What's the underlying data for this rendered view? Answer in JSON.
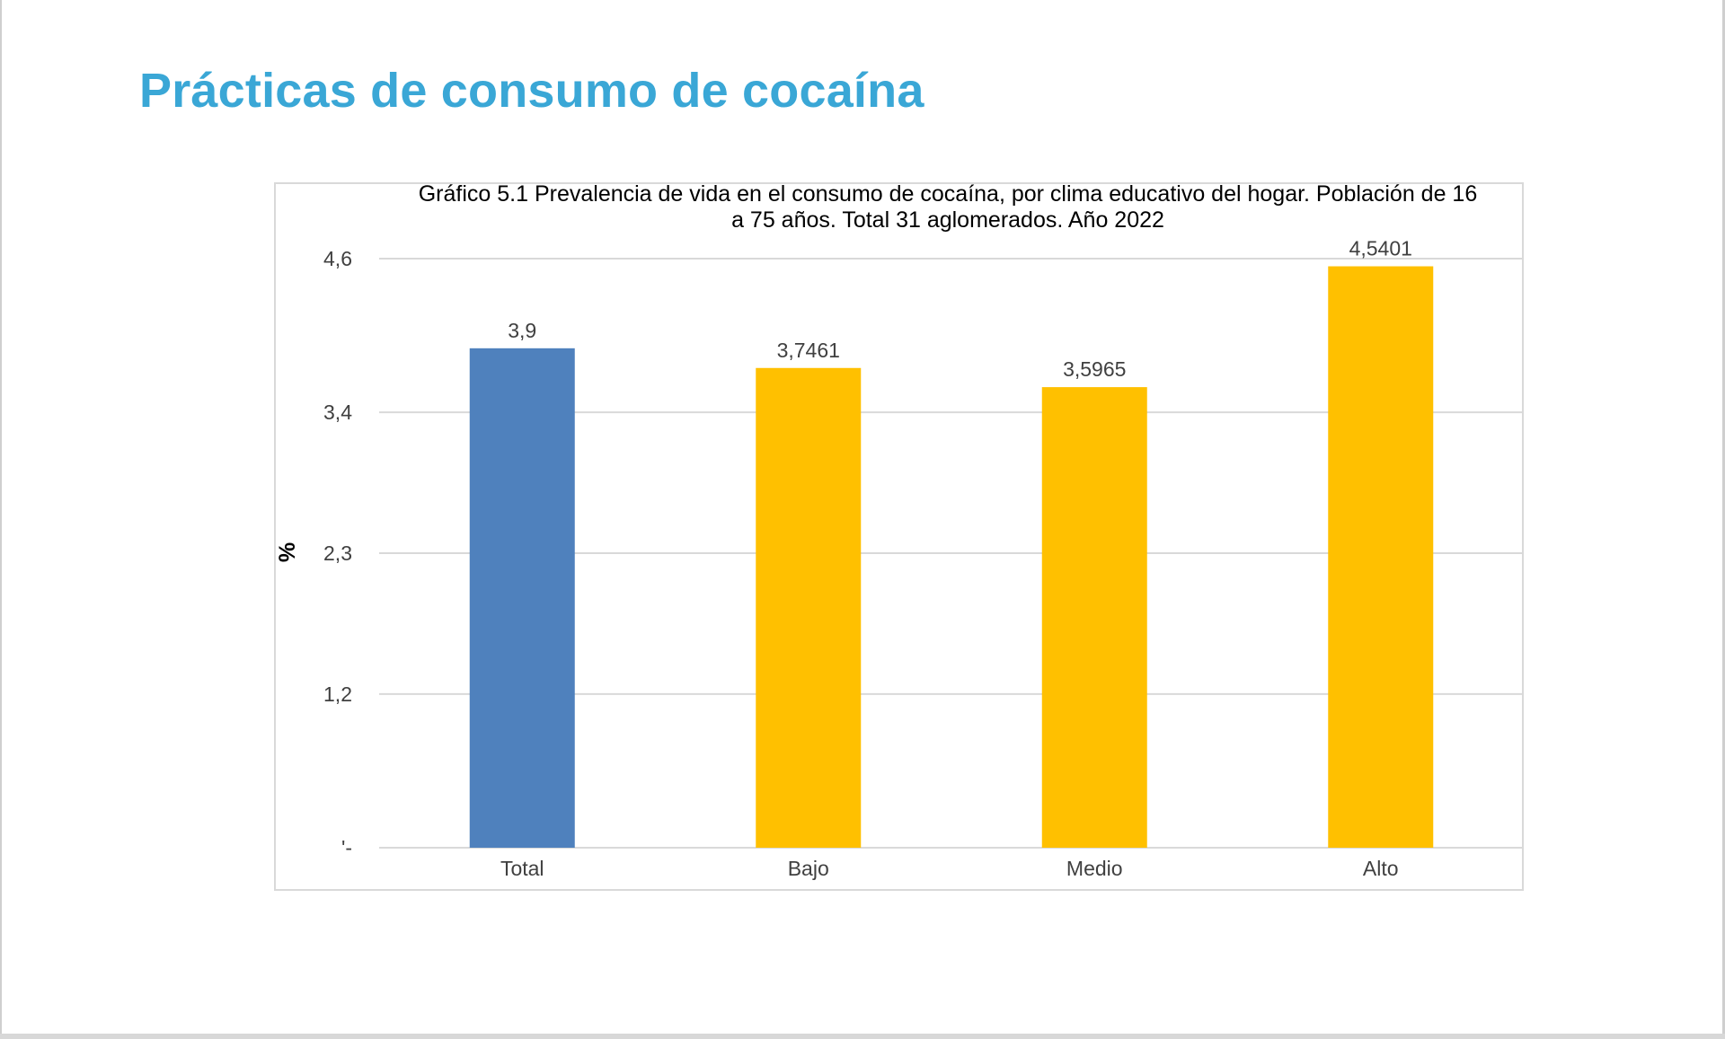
{
  "page": {
    "title": "Prácticas de consumo de cocaína"
  },
  "chart_data": {
    "type": "bar",
    "title": "Gráfico 5.1  Prevalencia de vida en el consumo de cocaína, por clima educativo del hogar. Población de 16 a 75 años. Total 31 aglomerados. Año 2022",
    "title_line1": "Gráfico 5.1  Prevalencia de vida en el consumo de cocaína, por clima educativo del hogar. Población de 16",
    "title_line2": "a 75 años. Total 31 aglomerados. Año 2022",
    "xlabel": "",
    "ylabel": "%",
    "categories": [
      "Total",
      "Bajo",
      "Medio",
      "Alto"
    ],
    "values": [
      3.9,
      3.7461,
      3.5965,
      4.5401
    ],
    "data_labels": [
      "3,9",
      "3,7461",
      "3,5965",
      "4,5401"
    ],
    "bar_colors": [
      "#4f81bd",
      "#ffc000",
      "#ffc000",
      "#ffc000"
    ],
    "ylim": [
      0,
      4.6
    ],
    "yticks": [
      0,
      1.2,
      2.3,
      3.4,
      4.6
    ],
    "ytick_labels": [
      "'-",
      "1,2",
      "2,3",
      "3,4",
      "4,6"
    ],
    "grid": true,
    "legend": "none"
  },
  "colors": {
    "title": "#3aa7d6",
    "gridline": "#d9d9d9",
    "axis_text": "#404040"
  }
}
